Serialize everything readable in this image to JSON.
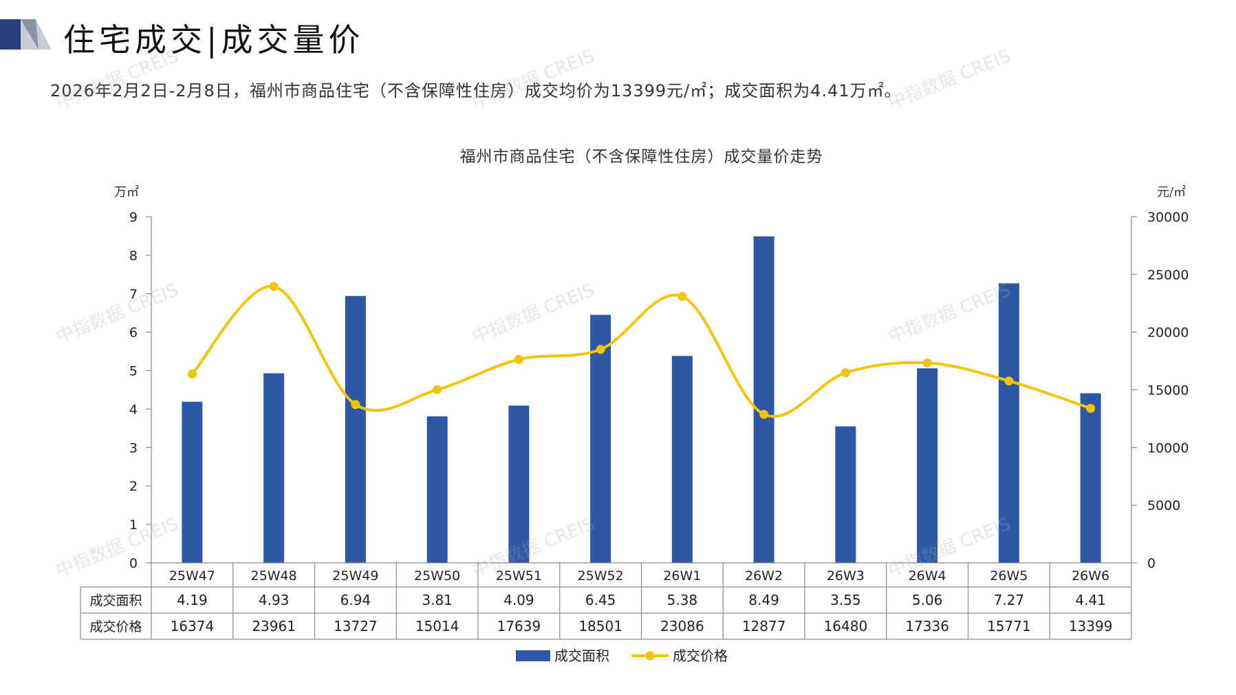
{
  "page": {
    "title": "住宅成交|成交量价",
    "summary": "2026年2月2日-2月8日，福州市商品住宅（不含保障性住房）成交均价为13399元/㎡；成交面积为4.41万㎡。",
    "watermark": "中指数据 CREIS"
  },
  "chart_data": {
    "type": "bar",
    "title": "福州市商品住宅（不含保障性住房）成交量价走势",
    "categories": [
      "25W47",
      "25W48",
      "25W49",
      "25W50",
      "25W51",
      "25W52",
      "26W1",
      "26W2",
      "26W3",
      "26W4",
      "26W5",
      "26W6"
    ],
    "series": [
      {
        "name": "成交面积",
        "type": "bar",
        "axis": "left",
        "color": "#2e58a6",
        "values": [
          4.19,
          4.93,
          6.94,
          3.81,
          4.09,
          6.45,
          5.38,
          8.49,
          3.55,
          5.06,
          7.27,
          4.41
        ]
      },
      {
        "name": "成交价格",
        "type": "line",
        "axis": "right",
        "color": "#f5c400",
        "values": [
          16374,
          23961,
          13727,
          15014,
          17639,
          18501,
          23086,
          12877,
          16480,
          17336,
          15771,
          13399
        ]
      }
    ],
    "y_left": {
      "label": "万㎡",
      "min": 0,
      "max": 9,
      "ticks": [
        "0",
        "1",
        "2",
        "3",
        "4",
        "5",
        "6",
        "7",
        "8",
        "9"
      ]
    },
    "y_right": {
      "label": "元/㎡",
      "min": 0,
      "max": 30000,
      "ticks": [
        "0",
        "5000",
        "10000",
        "15000",
        "20000",
        "25000",
        "30000"
      ]
    },
    "table": {
      "rows": [
        {
          "label": "成交面积",
          "values": [
            "4.19",
            "4.93",
            "6.94",
            "3.81",
            "4.09",
            "6.45",
            "5.38",
            "8.49",
            "3.55",
            "5.06",
            "7.27",
            "4.41"
          ]
        },
        {
          "label": "成交价格",
          "values": [
            "16374",
            "23961",
            "13727",
            "15014",
            "17639",
            "18501",
            "23086",
            "12877",
            "16480",
            "17336",
            "15771",
            "13399"
          ]
        }
      ]
    },
    "legend_position": "bottom",
    "grid": false
  },
  "colors": {
    "bar": "#2e58a6",
    "line": "#f5c400",
    "logo_dark": "#2a3d7c",
    "logo_light": "#9aa3b4"
  }
}
